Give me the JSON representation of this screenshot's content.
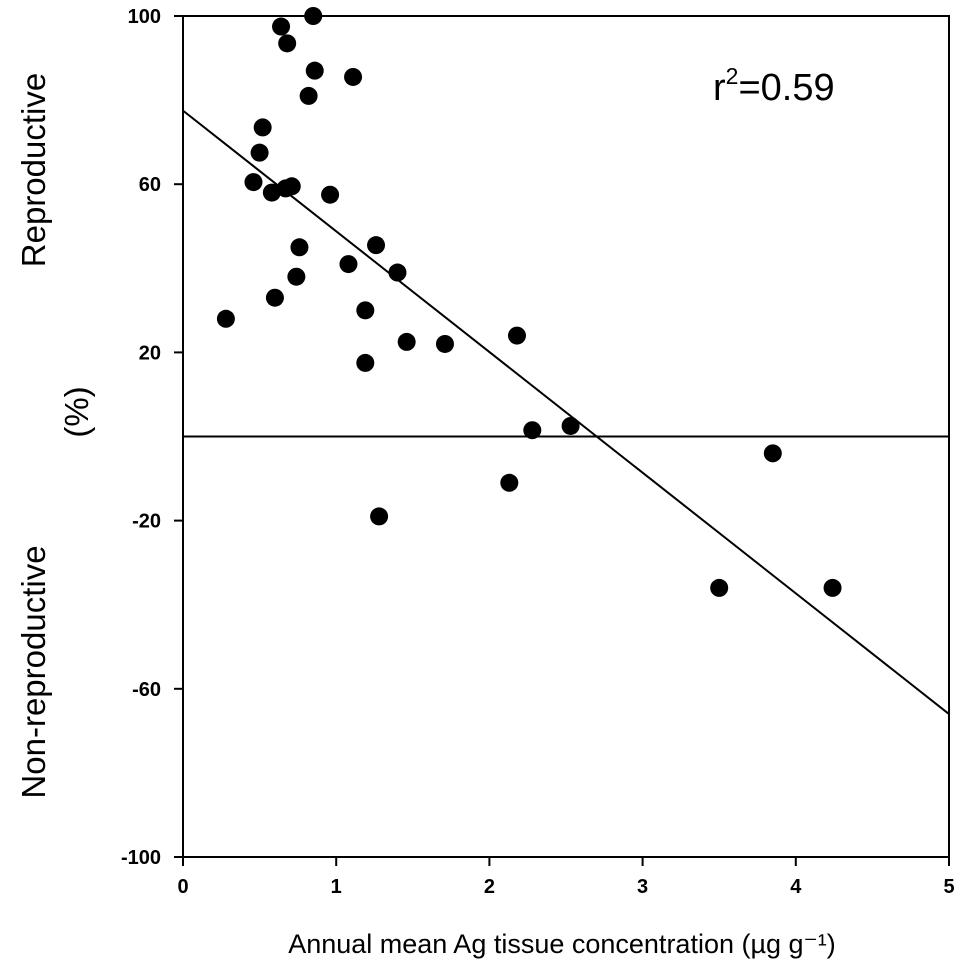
{
  "chart_data": {
    "type": "scatter",
    "title": "",
    "xlabel": "Annual mean Ag tissue concentration (µg g⁻¹)",
    "ylabel_upper": "Reproductive",
    "ylabel_unit": "(%)",
    "ylabel_lower": "Non-reproductive",
    "xlim": [
      0,
      5
    ],
    "ylim": [
      -100,
      100
    ],
    "x_ticks": [
      0,
      1,
      2,
      3,
      4,
      5
    ],
    "x_tick_labels": [
      "0",
      "1",
      "2",
      "3",
      "4",
      "5"
    ],
    "y_ticks": [
      100,
      60,
      20,
      -20,
      -60,
      -100
    ],
    "y_tick_labels": [
      "100",
      "60",
      "20",
      "-20",
      "-60",
      "-100"
    ],
    "grid": false,
    "annotation": {
      "base": "r",
      "sup": "2",
      "rest": "=0.59"
    },
    "reference_line_y": 0,
    "regression_line": {
      "x": [
        0,
        5
      ],
      "y": [
        77.5,
        -66
      ]
    },
    "points": [
      {
        "x": 0.28,
        "y": 28
      },
      {
        "x": 0.46,
        "y": 60.5
      },
      {
        "x": 0.5,
        "y": 67.5
      },
      {
        "x": 0.52,
        "y": 73.5
      },
      {
        "x": 0.58,
        "y": 58
      },
      {
        "x": 0.6,
        "y": 33
      },
      {
        "x": 0.64,
        "y": 97.5
      },
      {
        "x": 0.67,
        "y": 59
      },
      {
        "x": 0.68,
        "y": 93.5
      },
      {
        "x": 0.71,
        "y": 59.5
      },
      {
        "x": 0.74,
        "y": 38
      },
      {
        "x": 0.76,
        "y": 45
      },
      {
        "x": 0.82,
        "y": 81
      },
      {
        "x": 0.85,
        "y": 100
      },
      {
        "x": 0.86,
        "y": 87
      },
      {
        "x": 0.96,
        "y": 57.5
      },
      {
        "x": 1.08,
        "y": 41
      },
      {
        "x": 1.11,
        "y": 85.5
      },
      {
        "x": 1.19,
        "y": 30
      },
      {
        "x": 1.19,
        "y": 17.5
      },
      {
        "x": 1.26,
        "y": 45.5
      },
      {
        "x": 1.28,
        "y": -19
      },
      {
        "x": 1.4,
        "y": 39
      },
      {
        "x": 1.46,
        "y": 22.5
      },
      {
        "x": 1.71,
        "y": 22
      },
      {
        "x": 2.13,
        "y": -11
      },
      {
        "x": 2.18,
        "y": 24
      },
      {
        "x": 2.28,
        "y": 1.5
      },
      {
        "x": 2.53,
        "y": 2.5
      },
      {
        "x": 3.5,
        "y": -36
      },
      {
        "x": 3.85,
        "y": -4
      },
      {
        "x": 4.24,
        "y": -36
      }
    ]
  }
}
